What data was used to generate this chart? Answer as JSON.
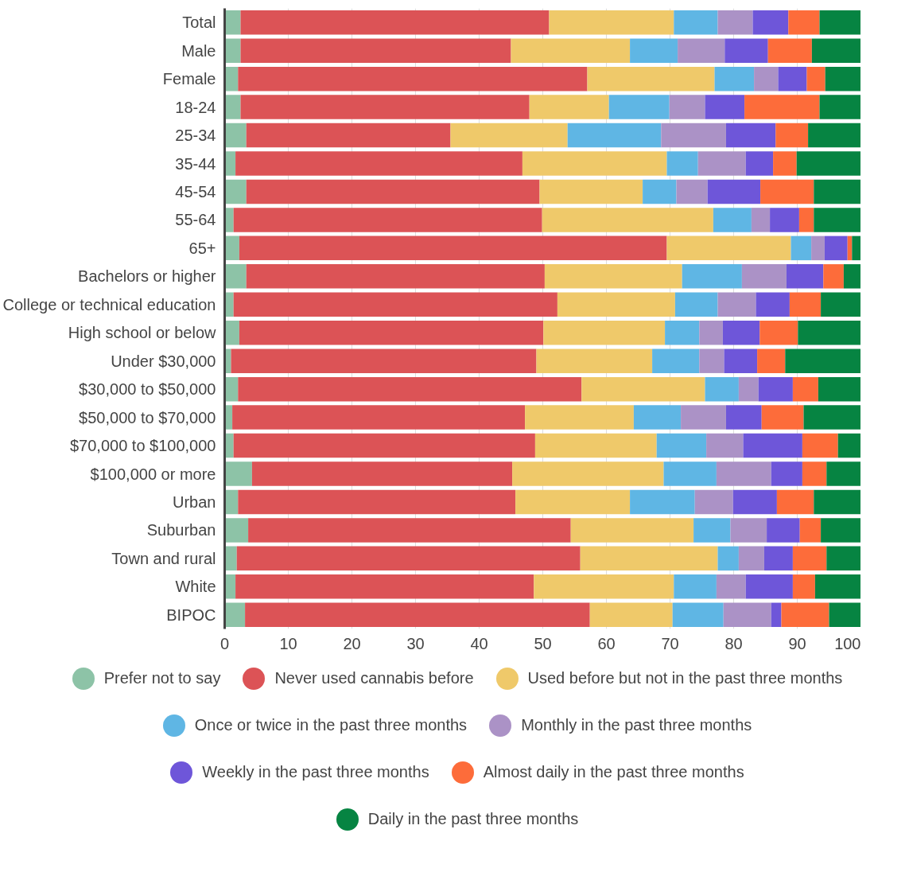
{
  "chart_data": {
    "type": "bar",
    "orientation": "horizontal",
    "stacked": true,
    "categories": [
      "Total",
      "Male",
      "Female",
      "18-24",
      "25-34",
      "35-44",
      "45-54",
      "55-64",
      "65+",
      "Bachelors or higher",
      "College or technical education",
      "High school or below",
      "Under $30,000",
      "$30,000 to $50,000",
      "$50,000 to $70,000",
      "$70,000 to $100,000",
      "$100,000 or more",
      "Urban",
      "Suburban",
      "Town and rural",
      "White",
      "BIPOC"
    ],
    "series": [
      {
        "name": "Prefer not to say",
        "color": "#8dc3a7",
        "values": [
          2.5,
          2.5,
          2.1,
          2.5,
          3.4,
          1.7,
          3.4,
          1.4,
          2.3,
          3.4,
          1.4,
          2.3,
          1.0,
          2.1,
          1.2,
          1.4,
          4.3,
          2.1,
          3.7,
          1.9,
          1.7,
          3.2
        ]
      },
      {
        "name": "Never used cannabis before",
        "color": "#dc5356",
        "values": [
          48.5,
          42.5,
          54.9,
          45.4,
          32.1,
          45.1,
          46.1,
          48.5,
          67.2,
          46.9,
          50.9,
          47.8,
          48.0,
          54.0,
          46.0,
          47.4,
          40.9,
          43.6,
          50.7,
          54.0,
          46.9,
          54.2
        ]
      },
      {
        "name": "Used before but not in the past three months",
        "color": "#efc96a",
        "values": [
          19.6,
          18.7,
          20.0,
          12.5,
          18.4,
          22.7,
          16.2,
          26.9,
          19.5,
          21.6,
          18.5,
          19.1,
          18.2,
          19.4,
          17.1,
          19.1,
          23.8,
          18.0,
          19.3,
          21.6,
          22.0,
          13.0
        ]
      },
      {
        "name": "Once or twice in the past three months",
        "color": "#5fb6e4",
        "values": [
          6.9,
          7.5,
          6.2,
          9.5,
          14.7,
          4.9,
          5.3,
          6.0,
          3.2,
          9.4,
          6.7,
          5.4,
          7.4,
          5.3,
          7.4,
          7.8,
          8.3,
          10.2,
          5.8,
          3.3,
          6.7,
          8.0
        ]
      },
      {
        "name": "Monthly in the past three months",
        "color": "#ab92c6",
        "values": [
          5.5,
          7.4,
          3.8,
          5.6,
          10.2,
          7.5,
          4.9,
          2.9,
          2.1,
          7.0,
          6.0,
          3.7,
          3.9,
          3.1,
          7.1,
          5.8,
          8.6,
          6.0,
          5.7,
          4.0,
          4.6,
          7.5
        ]
      },
      {
        "name": "Weekly in the past three months",
        "color": "#6e56d9",
        "values": [
          5.6,
          6.8,
          4.5,
          6.2,
          7.8,
          4.3,
          8.3,
          4.6,
          3.6,
          5.8,
          5.3,
          5.8,
          5.2,
          5.4,
          5.6,
          9.3,
          4.9,
          6.9,
          5.2,
          4.5,
          7.4,
          1.6
        ]
      },
      {
        "name": "Almost daily in the past three months",
        "color": "#fd6c3a",
        "values": [
          4.9,
          6.9,
          2.9,
          11.8,
          5.1,
          3.7,
          8.4,
          2.3,
          0.7,
          3.2,
          4.9,
          6.0,
          4.4,
          4.0,
          6.6,
          5.6,
          3.8,
          5.8,
          3.3,
          5.3,
          3.5,
          7.5
        ]
      },
      {
        "name": "Daily in the past three months",
        "color": "#068442",
        "values": [
          6.5,
          7.7,
          5.6,
          6.5,
          8.3,
          10.1,
          7.4,
          7.4,
          1.4,
          2.7,
          6.3,
          9.9,
          11.9,
          6.7,
          9.0,
          3.6,
          5.4,
          7.4,
          6.3,
          5.4,
          7.2,
          5.0
        ]
      }
    ],
    "xlim": [
      0,
      100
    ],
    "xticks": [
      0,
      10,
      20,
      30,
      40,
      50,
      60,
      70,
      80,
      90,
      100
    ],
    "grid": "x",
    "legend": "bottom"
  }
}
